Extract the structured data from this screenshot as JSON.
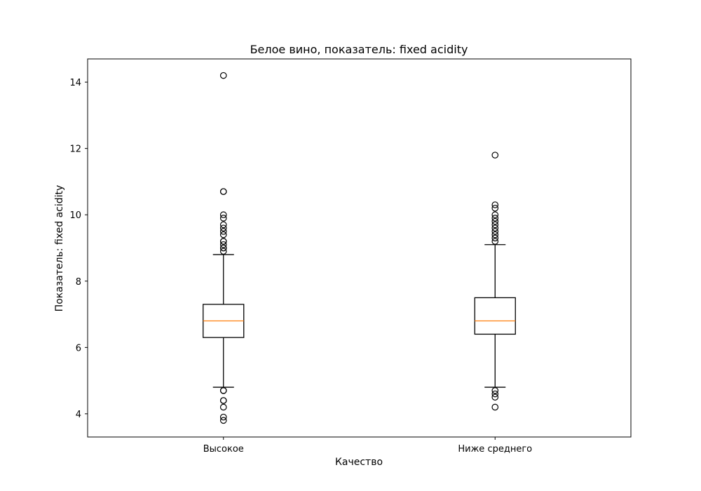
{
  "chart_data": {
    "type": "boxplot",
    "title": "Белое вино, показатель: fixed acidity",
    "xlabel": "Качество",
    "ylabel": "Показатель: fixed acidity",
    "ylim": [
      3.3,
      14.7
    ],
    "yticks": [
      4,
      6,
      8,
      10,
      12,
      14
    ],
    "grid": false,
    "legend": "none",
    "median_color": "#ff7f0e",
    "categories": [
      "Высокое",
      "Ниже среднего"
    ],
    "boxes": [
      {
        "category": "Высокое",
        "whisker_low": 4.8,
        "q1": 6.3,
        "median": 6.8,
        "q3": 7.3,
        "whisker_high": 8.8,
        "outliers": [
          14.2,
          10.7,
          10.7,
          10.0,
          9.9,
          9.7,
          9.6,
          9.5,
          9.4,
          9.2,
          9.2,
          9.1,
          9.0,
          9.0,
          8.9,
          4.7,
          4.7,
          4.4,
          4.4,
          4.2,
          3.9,
          3.8
        ]
      },
      {
        "category": "Ниже среднего",
        "whisker_low": 4.8,
        "q1": 6.4,
        "median": 6.8,
        "q3": 7.5,
        "whisker_high": 9.1,
        "outliers": [
          11.8,
          10.3,
          10.2,
          10.0,
          9.9,
          9.8,
          9.7,
          9.6,
          9.5,
          9.4,
          9.3,
          9.2,
          4.7,
          4.6,
          4.5,
          4.2
        ]
      }
    ]
  }
}
